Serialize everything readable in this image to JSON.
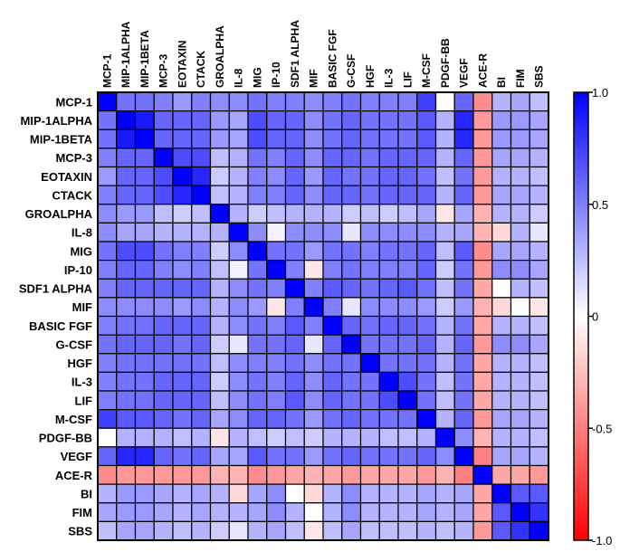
{
  "chart_data": {
    "type": "heatmap",
    "title": "",
    "rows": [
      "MCP-1",
      "MIP-1ALPHA",
      "MIP-1BETA",
      "MCP-3",
      "EOTAXIN",
      "CTACK",
      "GROALPHA",
      "IL-8",
      "MIG",
      "IP-10",
      "SDF1 ALPHA",
      "MIF",
      "BASIC FGF",
      "G-CSF",
      "HGF",
      "IL-3",
      "LIF",
      "M-CSF",
      "PDGF-BB",
      "VEGF",
      "ACE-R",
      "BI",
      "FIM",
      "SBS"
    ],
    "columns": [
      "MCP-1",
      "MIP-1ALPHA",
      "MIP-1BETA",
      "MCP-3",
      "EOTAXIN",
      "CTACK",
      "GROALPHA",
      "IL-8",
      "MIG",
      "IP-10",
      "SDF1 ALPHA",
      "MIF",
      "BASIC FGF",
      "G-CSF",
      "HGF",
      "IL-3",
      "LIF",
      "M-CSF",
      "PDGF-BB",
      "VEGF",
      "ACE-R",
      "BI",
      "FIM",
      "SBS"
    ],
    "values": [
      [
        1.0,
        0.55,
        0.55,
        0.5,
        0.4,
        0.5,
        0.45,
        0.45,
        0.55,
        0.5,
        0.5,
        0.45,
        0.5,
        0.55,
        0.5,
        0.5,
        0.5,
        0.75,
        0.0,
        0.6,
        -0.45,
        0.3,
        0.35,
        0.25
      ],
      [
        0.55,
        1.0,
        0.9,
        0.6,
        0.6,
        0.6,
        0.4,
        0.35,
        0.7,
        0.6,
        0.6,
        0.45,
        0.55,
        0.6,
        0.55,
        0.55,
        0.55,
        0.65,
        0.3,
        0.85,
        -0.4,
        0.4,
        0.4,
        0.35
      ],
      [
        0.55,
        0.9,
        1.0,
        0.6,
        0.6,
        0.6,
        0.4,
        0.35,
        0.7,
        0.6,
        0.6,
        0.45,
        0.55,
        0.6,
        0.55,
        0.55,
        0.55,
        0.65,
        0.3,
        0.85,
        -0.4,
        0.4,
        0.4,
        0.35
      ],
      [
        0.5,
        0.6,
        0.6,
        1.0,
        0.7,
        0.7,
        0.25,
        0.3,
        0.55,
        0.5,
        0.6,
        0.45,
        0.6,
        0.6,
        0.55,
        0.6,
        0.6,
        0.6,
        0.3,
        0.6,
        -0.4,
        0.35,
        0.35,
        0.3
      ],
      [
        0.4,
        0.6,
        0.6,
        0.7,
        1.0,
        0.85,
        0.2,
        0.3,
        0.5,
        0.45,
        0.6,
        0.4,
        0.6,
        0.55,
        0.55,
        0.6,
        0.6,
        0.55,
        0.25,
        0.55,
        -0.4,
        0.3,
        0.3,
        0.25
      ],
      [
        0.5,
        0.6,
        0.6,
        0.7,
        0.85,
        1.0,
        0.25,
        0.3,
        0.5,
        0.5,
        0.6,
        0.45,
        0.6,
        0.6,
        0.55,
        0.6,
        0.6,
        0.6,
        0.3,
        0.6,
        -0.4,
        0.35,
        0.35,
        0.3
      ],
      [
        0.45,
        0.4,
        0.4,
        0.25,
        0.2,
        0.25,
        1.0,
        0.3,
        0.2,
        0.25,
        0.3,
        0.3,
        0.3,
        0.2,
        0.25,
        0.2,
        0.25,
        0.35,
        -0.1,
        0.35,
        -0.3,
        0.3,
        0.3,
        0.2
      ],
      [
        0.45,
        0.35,
        0.35,
        0.3,
        0.3,
        0.3,
        0.3,
        1.0,
        0.45,
        0.05,
        0.45,
        0.45,
        0.45,
        0.1,
        0.45,
        0.45,
        0.45,
        0.45,
        0.3,
        0.35,
        -0.3,
        -0.15,
        0.3,
        0.1
      ],
      [
        0.55,
        0.7,
        0.7,
        0.55,
        0.5,
        0.5,
        0.2,
        0.45,
        1.0,
        0.55,
        0.55,
        0.4,
        0.55,
        0.55,
        0.5,
        0.55,
        0.55,
        0.6,
        0.25,
        0.65,
        -0.45,
        0.35,
        0.35,
        0.3
      ],
      [
        0.5,
        0.6,
        0.6,
        0.5,
        0.45,
        0.5,
        0.25,
        0.05,
        0.55,
        1.0,
        0.5,
        -0.1,
        0.5,
        0.55,
        0.5,
        0.5,
        0.5,
        0.6,
        0.2,
        0.55,
        -0.4,
        0.45,
        0.45,
        0.35
      ],
      [
        0.5,
        0.6,
        0.6,
        0.6,
        0.6,
        0.6,
        0.3,
        0.45,
        0.55,
        0.5,
        1.0,
        0.5,
        0.65,
        0.6,
        0.55,
        0.6,
        0.65,
        0.55,
        0.25,
        0.55,
        -0.35,
        0.0,
        0.3,
        0.25
      ],
      [
        0.45,
        0.45,
        0.45,
        0.45,
        0.4,
        0.45,
        0.3,
        0.45,
        0.4,
        -0.1,
        0.5,
        1.0,
        0.5,
        0.1,
        0.45,
        0.45,
        0.45,
        0.4,
        0.2,
        0.4,
        -0.3,
        -0.15,
        0.0,
        -0.1
      ],
      [
        0.5,
        0.55,
        0.55,
        0.6,
        0.6,
        0.6,
        0.3,
        0.45,
        0.55,
        0.5,
        0.65,
        0.5,
        1.0,
        0.6,
        0.55,
        0.6,
        0.6,
        0.55,
        0.3,
        0.55,
        -0.35,
        0.3,
        0.3,
        0.25
      ],
      [
        0.55,
        0.6,
        0.6,
        0.6,
        0.55,
        0.6,
        0.2,
        0.1,
        0.55,
        0.55,
        0.6,
        0.1,
        0.6,
        1.0,
        0.55,
        0.55,
        0.55,
        0.6,
        0.3,
        0.6,
        -0.4,
        0.45,
        0.45,
        0.35
      ],
      [
        0.5,
        0.55,
        0.55,
        0.55,
        0.55,
        0.55,
        0.25,
        0.45,
        0.5,
        0.5,
        0.55,
        0.45,
        0.55,
        0.55,
        1.0,
        0.55,
        0.55,
        0.55,
        0.3,
        0.55,
        -0.35,
        0.3,
        0.3,
        0.25
      ],
      [
        0.5,
        0.55,
        0.55,
        0.6,
        0.6,
        0.6,
        0.2,
        0.45,
        0.55,
        0.5,
        0.6,
        0.45,
        0.6,
        0.55,
        0.55,
        1.0,
        0.7,
        0.55,
        0.25,
        0.55,
        -0.35,
        0.3,
        0.3,
        0.25
      ],
      [
        0.5,
        0.55,
        0.55,
        0.6,
        0.6,
        0.6,
        0.25,
        0.45,
        0.55,
        0.5,
        0.65,
        0.45,
        0.6,
        0.55,
        0.55,
        0.7,
        1.0,
        0.55,
        0.25,
        0.55,
        -0.35,
        0.3,
        0.3,
        0.25
      ],
      [
        0.75,
        0.65,
        0.65,
        0.6,
        0.55,
        0.6,
        0.35,
        0.45,
        0.6,
        0.6,
        0.55,
        0.4,
        0.55,
        0.6,
        0.55,
        0.55,
        0.55,
        1.0,
        0.3,
        0.6,
        -0.4,
        0.35,
        0.35,
        0.3
      ],
      [
        0.0,
        0.3,
        0.3,
        0.3,
        0.25,
        0.3,
        -0.1,
        0.3,
        0.25,
        0.2,
        0.25,
        0.2,
        0.3,
        0.3,
        0.3,
        0.25,
        0.25,
        0.3,
        1.0,
        0.45,
        -0.3,
        0.3,
        0.3,
        0.25
      ],
      [
        0.6,
        0.85,
        0.85,
        0.6,
        0.55,
        0.6,
        0.35,
        0.35,
        0.65,
        0.55,
        0.55,
        0.4,
        0.55,
        0.6,
        0.55,
        0.55,
        0.55,
        0.6,
        0.45,
        1.0,
        -0.5,
        0.35,
        0.35,
        0.3
      ],
      [
        -0.45,
        -0.4,
        -0.4,
        -0.4,
        -0.4,
        -0.4,
        -0.3,
        -0.3,
        -0.45,
        -0.4,
        -0.35,
        -0.3,
        -0.35,
        -0.4,
        -0.35,
        -0.35,
        -0.35,
        -0.4,
        -0.3,
        -0.5,
        1.0,
        -0.35,
        -0.35,
        -0.4
      ],
      [
        0.3,
        0.4,
        0.4,
        0.35,
        0.3,
        0.35,
        0.3,
        -0.15,
        0.35,
        0.45,
        0.0,
        -0.15,
        0.3,
        0.45,
        0.3,
        0.3,
        0.3,
        0.35,
        0.3,
        0.35,
        -0.35,
        1.0,
        0.65,
        0.65
      ],
      [
        0.35,
        0.4,
        0.4,
        0.35,
        0.3,
        0.35,
        0.3,
        0.3,
        0.35,
        0.45,
        0.3,
        0.0,
        0.3,
        0.45,
        0.3,
        0.3,
        0.3,
        0.35,
        0.3,
        0.35,
        -0.35,
        0.65,
        1.0,
        0.8
      ],
      [
        0.25,
        0.35,
        0.35,
        0.3,
        0.25,
        0.3,
        0.2,
        0.1,
        0.3,
        0.35,
        0.25,
        -0.1,
        0.25,
        0.35,
        0.25,
        0.25,
        0.25,
        0.3,
        0.25,
        0.3,
        -0.4,
        0.65,
        0.8,
        1.0
      ]
    ],
    "colorbar": {
      "range": [
        -1.0,
        1.0
      ],
      "ticks": [
        1.0,
        0.5,
        0,
        -0.5,
        -1.0
      ],
      "tick_labels": [
        "1.0",
        "0.5",
        "0",
        "-0.5",
        "-1.0"
      ],
      "colors": {
        "high": "#0000ff",
        "mid": "#ffffff",
        "low": "#ff0000"
      }
    },
    "grid": true,
    "legend": "right"
  }
}
